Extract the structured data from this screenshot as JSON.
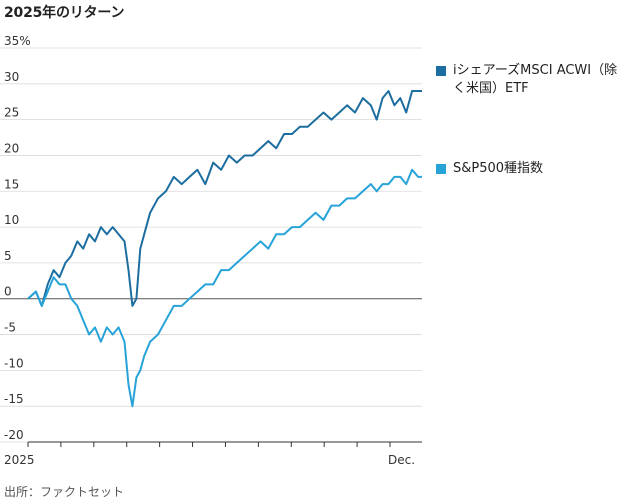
{
  "title": "2025年のリターン",
  "source": "出所：ファクトセット",
  "chart_data": {
    "type": "line",
    "ylim": [
      -20,
      35
    ],
    "yticks": [
      "35%",
      "30",
      "25",
      "20",
      "15",
      "10",
      "5",
      "0",
      "-5",
      "-10",
      "-15",
      "-20"
    ],
    "xtick_labels": [
      "2025",
      "Dec."
    ],
    "grid": true,
    "legend_position": "right",
    "series": [
      {
        "name": "iシェアーズMSCI ACWI（除く米国）ETF",
        "color": "#1d6ea0",
        "x": [
          0,
          0.02,
          0.035,
          0.05,
          0.065,
          0.08,
          0.095,
          0.11,
          0.125,
          0.14,
          0.155,
          0.17,
          0.185,
          0.2,
          0.215,
          0.23,
          0.245,
          0.255,
          0.265,
          0.275,
          0.285,
          0.295,
          0.31,
          0.33,
          0.35,
          0.37,
          0.39,
          0.41,
          0.43,
          0.45,
          0.47,
          0.49,
          0.51,
          0.53,
          0.55,
          0.57,
          0.59,
          0.61,
          0.63,
          0.65,
          0.67,
          0.69,
          0.71,
          0.73,
          0.75,
          0.77,
          0.79,
          0.81,
          0.83,
          0.85,
          0.87,
          0.885,
          0.9,
          0.915,
          0.93,
          0.945,
          0.96,
          0.975,
          0.99,
          1.0
        ],
        "values": [
          0,
          1,
          -1,
          2,
          4,
          3,
          5,
          6,
          8,
          7,
          9,
          8,
          10,
          9,
          10,
          9,
          8,
          4,
          -1,
          0,
          7,
          9,
          12,
          14,
          15,
          17,
          16,
          17,
          18,
          16,
          19,
          18,
          20,
          19,
          20,
          20,
          21,
          22,
          21,
          23,
          23,
          24,
          24,
          25,
          26,
          25,
          26,
          27,
          26,
          28,
          27,
          25,
          28,
          29,
          27,
          28,
          26,
          29,
          29,
          29
        ]
      },
      {
        "name": "S&P500種指数",
        "color": "#27a3d8",
        "x": [
          0,
          0.02,
          0.035,
          0.05,
          0.065,
          0.08,
          0.095,
          0.11,
          0.125,
          0.14,
          0.155,
          0.17,
          0.185,
          0.2,
          0.215,
          0.23,
          0.245,
          0.255,
          0.265,
          0.275,
          0.285,
          0.295,
          0.31,
          0.33,
          0.35,
          0.37,
          0.39,
          0.41,
          0.43,
          0.45,
          0.47,
          0.49,
          0.51,
          0.53,
          0.55,
          0.57,
          0.59,
          0.61,
          0.63,
          0.65,
          0.67,
          0.69,
          0.71,
          0.73,
          0.75,
          0.77,
          0.79,
          0.81,
          0.83,
          0.85,
          0.87,
          0.885,
          0.9,
          0.915,
          0.93,
          0.945,
          0.96,
          0.975,
          0.99,
          1.0
        ],
        "values": [
          0,
          1,
          -1,
          1,
          3,
          2,
          2,
          0,
          -1,
          -3,
          -5,
          -4,
          -6,
          -4,
          -5,
          -4,
          -6,
          -12,
          -15,
          -11,
          -10,
          -8,
          -6,
          -5,
          -3,
          -1,
          -1,
          0,
          1,
          2,
          2,
          4,
          4,
          5,
          6,
          7,
          8,
          7,
          9,
          9,
          10,
          10,
          11,
          12,
          11,
          13,
          13,
          14,
          14,
          15,
          16,
          15,
          16,
          16,
          17,
          17,
          16,
          18,
          17,
          17
        ]
      }
    ]
  }
}
